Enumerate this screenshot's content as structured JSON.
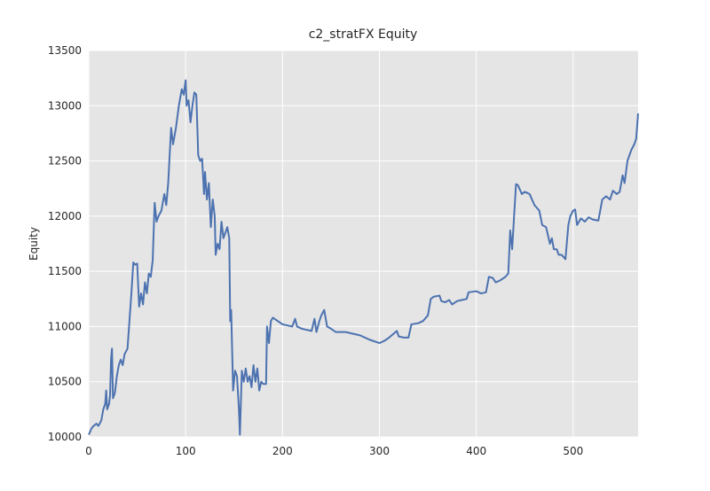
{
  "chart_data": {
    "type": "line",
    "title": "c2_stratFX Equity",
    "y_label": "Equity",
    "xlim": [
      0,
      567
    ],
    "ylim": [
      10000,
      13500
    ],
    "xticks": [
      0,
      100,
      200,
      300,
      400,
      500
    ],
    "yticks": [
      10000,
      10500,
      11000,
      11500,
      12000,
      12500,
      13000,
      13500
    ],
    "grid": true,
    "background": "#e5e5e5",
    "grid_color": "#ffffff",
    "series": [
      {
        "name": "Equity",
        "color": "#4c72b0",
        "x": [
          0,
          3,
          5,
          8,
          10,
          13,
          15,
          17,
          18,
          19,
          21,
          22,
          23,
          24,
          25,
          27,
          29,
          31,
          33,
          35,
          37,
          40,
          42,
          44,
          46,
          48,
          50,
          52,
          54,
          56,
          58,
          60,
          62,
          64,
          66,
          68,
          70,
          72,
          75,
          78,
          80,
          82,
          85,
          87,
          90,
          93,
          96,
          98,
          100,
          101,
          103,
          105,
          107,
          109,
          111,
          113,
          115,
          117,
          119,
          120,
          122,
          124,
          126,
          128,
          130,
          131,
          133,
          135,
          137,
          139,
          141,
          143,
          145,
          146,
          147,
          149,
          151,
          153,
          155,
          156,
          158,
          160,
          162,
          164,
          166,
          168,
          170,
          172,
          174,
          176,
          178,
          180,
          183,
          184,
          186,
          188,
          190,
          195,
          200,
          210,
          213,
          215,
          220,
          230,
          233,
          235,
          238,
          240,
          243,
          246,
          250,
          255,
          265,
          275,
          280,
          290,
          300,
          305,
          310,
          318,
          320,
          325,
          330,
          333,
          340,
          345,
          350,
          353,
          356,
          362,
          364,
          368,
          372,
          375,
          380,
          385,
          390,
          392,
          400,
          405,
          410,
          413,
          417,
          420,
          425,
          430,
          433,
          435,
          437,
          439,
          441,
          443,
          447,
          450,
          455,
          460,
          465,
          468,
          472,
          476,
          478,
          480,
          483,
          485,
          488,
          490,
          492,
          495,
          497,
          500,
          502,
          504,
          508,
          512,
          516,
          520,
          526,
          530,
          534,
          538,
          541,
          545,
          548,
          551,
          553,
          556,
          560,
          563,
          565,
          567
        ],
        "values": [
          10020,
          10080,
          10100,
          10120,
          10100,
          10150,
          10250,
          10300,
          10420,
          10250,
          10300,
          10380,
          10700,
          10800,
          10350,
          10400,
          10550,
          10650,
          10700,
          10650,
          10750,
          10800,
          11050,
          11300,
          11580,
          11560,
          11570,
          11180,
          11300,
          11200,
          11400,
          11300,
          11480,
          11450,
          11600,
          12120,
          11950,
          12000,
          12050,
          12200,
          12100,
          12300,
          12800,
          12650,
          12800,
          13000,
          13150,
          13100,
          13230,
          13000,
          13050,
          12850,
          13000,
          13120,
          13100,
          12550,
          12500,
          12520,
          12200,
          12400,
          12150,
          12300,
          11900,
          12150,
          12000,
          11650,
          11750,
          11700,
          11950,
          11800,
          11850,
          11900,
          11800,
          11050,
          11150,
          10420,
          10600,
          10550,
          10250,
          10020,
          10600,
          10500,
          10620,
          10500,
          10550,
          10450,
          10650,
          10500,
          10620,
          10420,
          10500,
          10480,
          10480,
          11000,
          10850,
          11050,
          11080,
          11050,
          11020,
          11000,
          11070,
          11000,
          10980,
          10960,
          11070,
          10950,
          11050,
          11100,
          11150,
          11000,
          10980,
          10950,
          10950,
          10930,
          10920,
          10880,
          10850,
          10870,
          10900,
          10960,
          10910,
          10900,
          10900,
          11020,
          11030,
          11050,
          11100,
          11250,
          11270,
          11280,
          11230,
          11220,
          11240,
          11200,
          11230,
          11240,
          11250,
          11310,
          11320,
          11300,
          11310,
          11450,
          11440,
          11400,
          11420,
          11450,
          11480,
          11870,
          11700,
          12000,
          12290,
          12280,
          12200,
          12220,
          12200,
          12100,
          12050,
          11920,
          11900,
          11750,
          11800,
          11700,
          11700,
          11650,
          11650,
          11630,
          11610,
          11920,
          12000,
          12050,
          12060,
          11920,
          11980,
          11950,
          11990,
          11970,
          11960,
          12150,
          12180,
          12150,
          12230,
          12200,
          12220,
          12370,
          12300,
          12500,
          12600,
          12650,
          12700,
          12930
        ]
      }
    ]
  }
}
